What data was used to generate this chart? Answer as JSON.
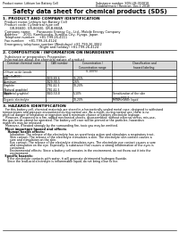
{
  "bg_color": "#ffffff",
  "header_left": "Product name: Lithium Ion Battery Cell",
  "header_right1": "Substance number: SDS-LIB-050818",
  "header_right2": "Establishment / Revision: Dec.1 2018",
  "title": "Safety data sheet for chemical products (SDS)",
  "section1_title": "1. PRODUCT AND COMPANY IDENTIFICATION",
  "section1_items": [
    "  Product name: Lithium Ion Battery Cell",
    "  Product code: Cylindrical type cell",
    "       GR-86600, GR-86600, GR-B-B60A",
    "  Company name:      Panasonic Energy Co., Ltd., Mobile Energy Company",
    "  Address:     2031, Kamikosaka, Sumoto-City, Hyogo, Japan",
    "  Telephone number:    +81-799-26-4111",
    "  Fax number:    +81-799-26-4124",
    "  Emergency telephone number (Weekdays) +81-799-26-3062",
    "                                    (Night and holiday) +81-799-26-4124"
  ],
  "section2_title": "2. COMPOSITION / INFORMATION ON INGREDIENTS",
  "section2_sub1": "  Substance or preparation: Preparation",
  "section2_sub2": "  Information about the chemical nature of product",
  "table_col_headers": [
    "Common chemical name",
    "CAS number",
    "Concentration /\nConcentration range\n(0-100%)",
    "Classification and\nhazard labeling"
  ],
  "table_rows": [
    [
      "Lithium oxide /anode\n(LiMn-CoMO3)",
      "-",
      "",
      ""
    ],
    [
      "Iron",
      "7439-89-6",
      "15-25%",
      "-"
    ],
    [
      "Aluminum",
      "7429-90-5",
      "2-6%",
      "-"
    ],
    [
      "Graphite\n(Natural graphite)\n(Artificial graphite)",
      "7782-42-5\n7782-42-5",
      "10-20%",
      ""
    ],
    [
      "Copper",
      "7440-50-8",
      "5-10%",
      "Sensitization of the skin\ngroup R43-2"
    ],
    [
      "Organic electrolyte",
      "-",
      "10-20%",
      "Inflammable liquid"
    ]
  ],
  "section3_title": "3. HAZARDS IDENTIFICATION",
  "section3_lines": [
    "   For this battery cell, chemical materials are stored in a hermetically sealed metal case, designed to withstand",
    "temperatures and pressure encountered during normal use. As a result, during normal use, there is no",
    "physical danger of inhalation or ingestion and a minimum chance of battery electrolyte leakage.",
    "   However, if exposed to a fire, added mechanical shocks, disassembled, without external stress, mis-use,",
    "the gas inside cannot be operated. The battery cell case will be pierced or the particles, hazardous",
    "materials may be released.",
    "   Moreover, if heated strongly by the surrounding fire, toxic gas may be emitted."
  ],
  "section3_bullet": "  Most important hazard and effects",
  "section3_health_lines": [
    "     Human health effects:",
    "        Inhalation: The release of the electrolyte has an anesthesia action and stimulates a respiratory tract.",
    "        Skin contact: The release of the electrolyte stimulates a skin. The electrolyte skin contact causes a",
    "        sore and stimulation on the skin.",
    "        Eye contact: The release of the electrolyte stimulates eyes. The electrolyte eye contact causes a sore",
    "        and stimulation on the eye. Especially, a substance that causes a strong inflammation of the eyes is",
    "        contained.",
    "        Environmental effects: Since a battery cell remains in the environment, do not throw out it into the",
    "        environment."
  ],
  "section3_specific_lines": [
    "  Specific hazards:",
    "     If the electrolyte contacts with water, it will generate detrimental hydrogen fluoride.",
    "     Since the lead-acid electrolyte is inflammable liquid, do not bring close to fire."
  ]
}
